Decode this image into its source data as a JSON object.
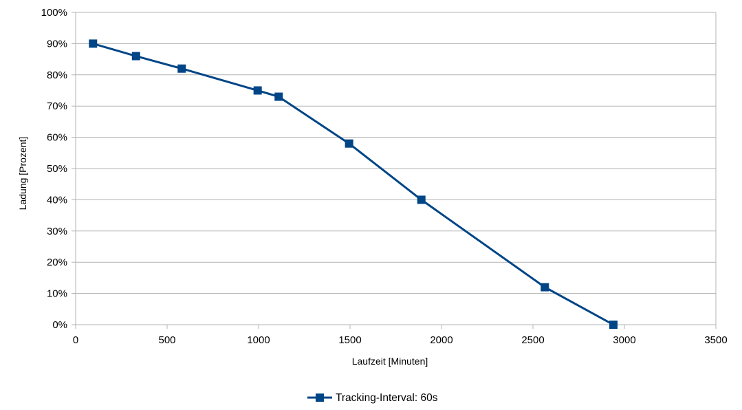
{
  "chart_data": {
    "type": "line",
    "title": "",
    "xlabel": "Laufzeit [Minuten]",
    "ylabel": "Ladung [Prozent]",
    "xlim": [
      0,
      3500
    ],
    "ylim": [
      0,
      100
    ],
    "x_ticks": [
      0,
      500,
      1000,
      1500,
      2000,
      2500,
      3000,
      3500
    ],
    "y_ticks": [
      0,
      10,
      20,
      30,
      40,
      50,
      60,
      70,
      80,
      90,
      100
    ],
    "y_tick_format": "percent",
    "grid": "horizontal",
    "legend_position": "bottom",
    "series": [
      {
        "name": "Tracking-Interval: 60s",
        "color": "#004586",
        "marker": "square",
        "x": [
          95,
          330,
          580,
          995,
          1110,
          1495,
          1890,
          2565,
          2940
        ],
        "y": [
          90,
          86,
          82,
          75,
          73,
          58,
          40,
          12,
          0
        ]
      }
    ]
  }
}
